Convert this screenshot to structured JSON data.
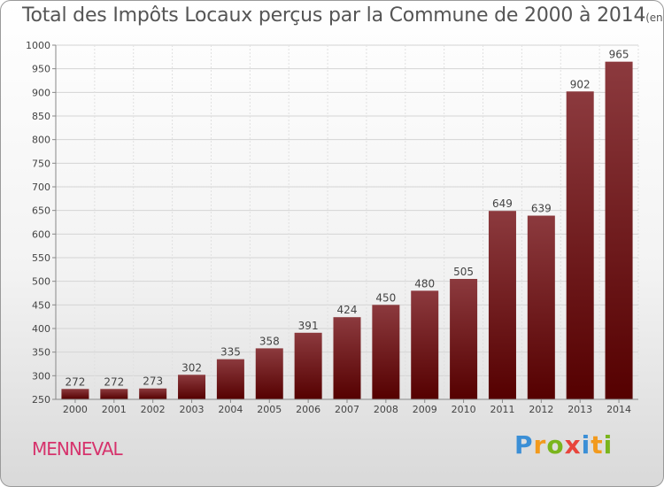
{
  "header": {
    "title": "Total des Impôts Locaux perçus par la Commune de 2000 à 2014",
    "unit": "(en milliers d'€)"
  },
  "commune": {
    "name": "MENNEVAL",
    "color": "#d6336c"
  },
  "brand": {
    "letters": [
      {
        "char": "P",
        "color": "#3b8fd6"
      },
      {
        "char": "r",
        "color": "#f29a1d"
      },
      {
        "char": "o",
        "color": "#7ab51d"
      },
      {
        "char": "x",
        "color": "#e8453c"
      },
      {
        "char": "i",
        "color": "#3b8fd6"
      },
      {
        "char": "t",
        "color": "#f29a1d"
      },
      {
        "char": "i",
        "color": "#7ab51d"
      }
    ]
  },
  "chart_data": {
    "type": "bar",
    "title": "Total des Impôts Locaux perçus par la Commune de 2000 à 2014",
    "categories": [
      "2000",
      "2001",
      "2002",
      "2003",
      "2004",
      "2005",
      "2006",
      "2007",
      "2008",
      "2009",
      "2010",
      "2011",
      "2012",
      "2013",
      "2014"
    ],
    "values": [
      272,
      272,
      273,
      302,
      335,
      358,
      391,
      424,
      450,
      480,
      505,
      649,
      639,
      902,
      965
    ],
    "ylim": [
      250,
      1000
    ],
    "yticks": [
      250,
      300,
      350,
      400,
      450,
      500,
      550,
      600,
      650,
      700,
      750,
      800,
      850,
      900,
      950,
      1000
    ],
    "grid": true,
    "bar_color_top": "#8c3a3e",
    "bar_color_bottom": "#550000"
  }
}
